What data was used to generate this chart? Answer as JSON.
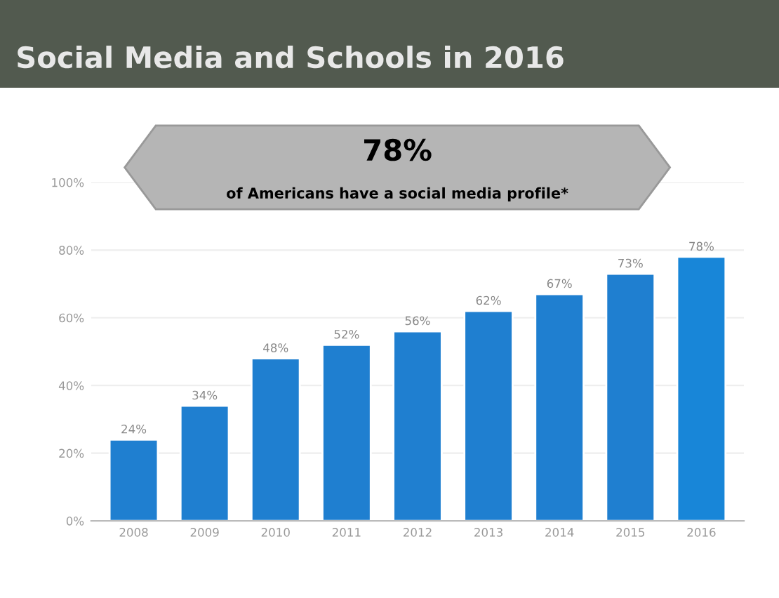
{
  "chart_data": {
    "type": "bar",
    "title": "Social Media and Schools in 2016",
    "categories": [
      "2008",
      "2009",
      "2010",
      "2011",
      "2012",
      "2013",
      "2014",
      "2015",
      "2016"
    ],
    "values": [
      24,
      34,
      48,
      52,
      56,
      62,
      67,
      73,
      78
    ],
    "colors": [
      "#1f7fd0",
      "#1f7fd0",
      "#1f7fd0",
      "#1f7fd0",
      "#1f7fd0",
      "#1f7fd0",
      "#1f7fd0",
      "#1f7fd0",
      "#1886d8"
    ],
    "value_labels": [
      "24%",
      "34%",
      "48%",
      "52%",
      "56%",
      "62%",
      "67%",
      "73%",
      "78%"
    ],
    "ylim": [
      0,
      100
    ],
    "yticks": [
      {
        "value": 0,
        "label": "0%"
      },
      {
        "value": 20,
        "label": "20%"
      },
      {
        "value": 40,
        "label": "40%"
      },
      {
        "value": 60,
        "label": "60%"
      },
      {
        "value": 80,
        "label": "80%"
      },
      {
        "value": 100,
        "label": "100%"
      }
    ],
    "grid": "y",
    "annotations": [
      "78%",
      "of Americans have a social media profile*"
    ]
  }
}
